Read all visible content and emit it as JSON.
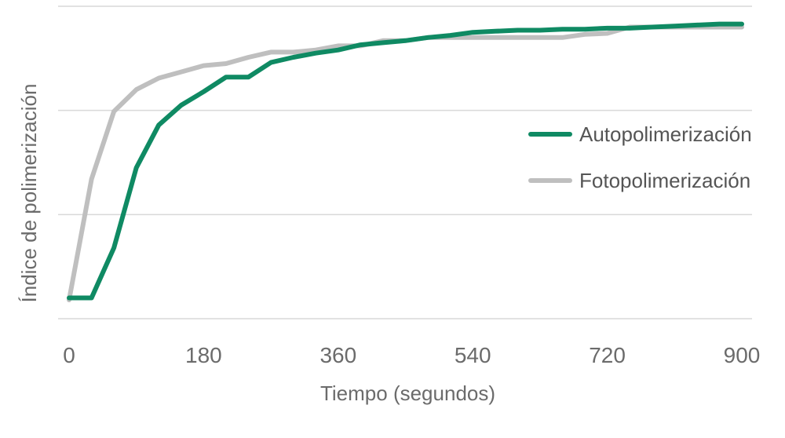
{
  "chart_data": {
    "type": "line",
    "title": "",
    "xlabel": "Tiempo (segundos)",
    "ylabel": "Índice de polimerización",
    "x_ticks": [
      0,
      180,
      360,
      540,
      720,
      900
    ],
    "xlim": [
      0,
      900
    ],
    "ylim": [
      0,
      3
    ],
    "y_tick_labels_shown": false,
    "grid": true,
    "legend_position": "right",
    "x": [
      0,
      30,
      60,
      90,
      120,
      150,
      180,
      210,
      240,
      270,
      300,
      330,
      360,
      390,
      420,
      450,
      480,
      510,
      540,
      570,
      600,
      630,
      660,
      690,
      720,
      750,
      780,
      810,
      840,
      870,
      900
    ],
    "series": [
      {
        "name": "Autopolimerización",
        "color": "#0f8a63",
        "values": [
          0.2,
          0.2,
          0.68,
          1.45,
          1.86,
          2.05,
          2.18,
          2.32,
          2.32,
          2.46,
          2.51,
          2.55,
          2.58,
          2.63,
          2.65,
          2.67,
          2.7,
          2.72,
          2.75,
          2.76,
          2.77,
          2.77,
          2.78,
          2.78,
          2.79,
          2.79,
          2.8,
          2.81,
          2.82,
          2.83,
          2.83
        ]
      },
      {
        "name": "Fotopolimerización",
        "color": "#bfbfbf",
        "values": [
          0.18,
          1.34,
          1.99,
          2.2,
          2.31,
          2.37,
          2.43,
          2.45,
          2.51,
          2.56,
          2.56,
          2.58,
          2.62,
          2.62,
          2.67,
          2.67,
          2.7,
          2.7,
          2.7,
          2.7,
          2.7,
          2.7,
          2.7,
          2.73,
          2.74,
          2.8,
          2.8,
          2.8,
          2.8,
          2.8,
          2.8
        ]
      }
    ]
  }
}
